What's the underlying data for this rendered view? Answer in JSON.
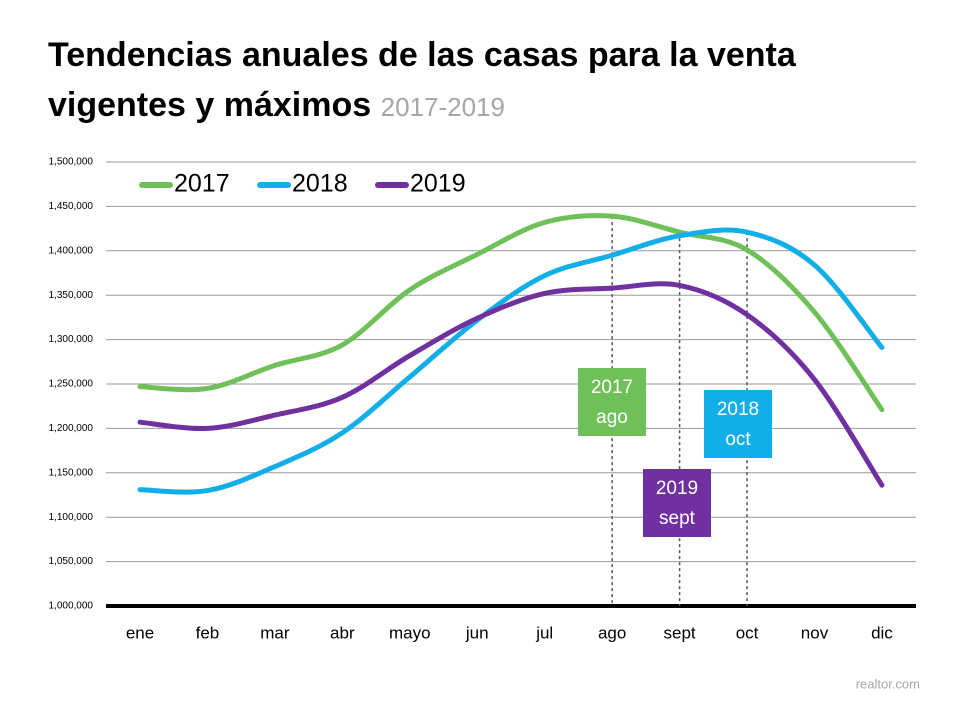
{
  "chart_data": {
    "type": "line",
    "title": "Tendencias anuales de las casas para la venta vigentes y máximos",
    "subtitle": "2017-2019",
    "source": "realtor.com",
    "categories": [
      "ene",
      "feb",
      "mar",
      "abr",
      "mayo",
      "jun",
      "jul",
      "ago",
      "sept",
      "oct",
      "nov",
      "dic"
    ],
    "series": [
      {
        "name": "2017",
        "color": "#70c05a",
        "values": [
          1247000,
          1245000,
          1271000,
          1294000,
          1356000,
          1396000,
          1432000,
          1439000,
          1421000,
          1401000,
          1331000,
          1221000
        ]
      },
      {
        "name": "2018",
        "color": "#12aee8",
        "values": [
          1131000,
          1130000,
          1157000,
          1195000,
          1258000,
          1322000,
          1372000,
          1395000,
          1417000,
          1421000,
          1384000,
          1291000
        ]
      },
      {
        "name": "2019",
        "color": "#7030a0",
        "values": [
          1207000,
          1200000,
          1215000,
          1235000,
          1282000,
          1324000,
          1352000,
          1358000,
          1361000,
          1328000,
          1255000,
          1136000
        ]
      }
    ],
    "ylim": [
      1000000,
      1500000
    ],
    "yticks": [
      {
        "value": 1000000,
        "label": "1,000,000"
      },
      {
        "value": 1050000,
        "label": "1,050,000"
      },
      {
        "value": 1100000,
        "label": "1,100,000"
      },
      {
        "value": 1150000,
        "label": "1,150,000"
      },
      {
        "value": 1200000,
        "label": "1,200,000"
      },
      {
        "value": 1250000,
        "label": "1,250,000"
      },
      {
        "value": 1300000,
        "label": "1,300,000"
      },
      {
        "value": 1350000,
        "label": "1,350,000"
      },
      {
        "value": 1400000,
        "label": "1,400,000"
      },
      {
        "value": 1450000,
        "label": "1,450,000"
      },
      {
        "value": 1500000,
        "label": "1,500,000"
      }
    ],
    "grid": true,
    "legend": "top-left",
    "annotations": [
      {
        "lines": [
          "2017",
          "ago"
        ],
        "color": "#70c05a"
      },
      {
        "lines": [
          "2019",
          "sept"
        ],
        "color": "#7030a0"
      },
      {
        "lines": [
          "2018",
          "oct"
        ],
        "color": "#12aee8"
      }
    ]
  }
}
